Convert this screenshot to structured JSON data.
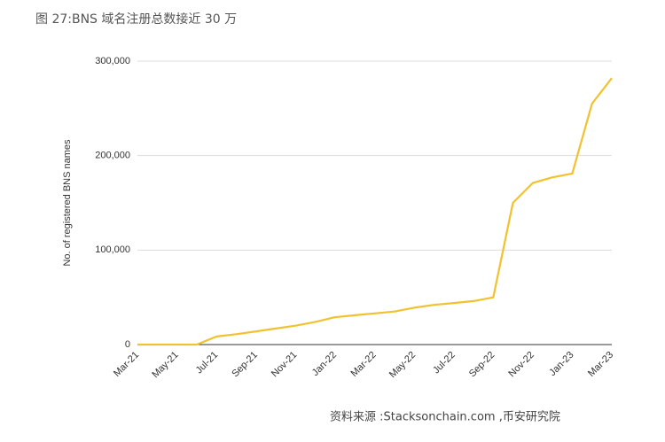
{
  "chart_data": {
    "type": "line",
    "title": "图 27:BNS 域名注册总数接近 30 万",
    "y_label": "No. of registered BNS names",
    "source": "资料来源 :Stacksonchain.com ,币安研究院",
    "categories": [
      "Mar-21",
      null,
      "May-21",
      null,
      "Jul-21",
      null,
      "Sep-21",
      null,
      "Nov-21",
      null,
      "Jan-22",
      null,
      "Mar-22",
      null,
      "May-22",
      null,
      "Jul-22",
      null,
      "Sep-22",
      null,
      "Nov-22",
      null,
      "Jan-23",
      null,
      "Mar-23"
    ],
    "series": [
      {
        "name": "BNS names",
        "color": "#f2c12e",
        "values": [
          0,
          0,
          0,
          0,
          8500,
          11000,
          14000,
          17000,
          20000,
          24000,
          29000,
          31000,
          33000,
          35000,
          39000,
          42000,
          44000,
          46000,
          50000,
          150000,
          171000,
          177000,
          181000,
          255000,
          282000
        ]
      }
    ],
    "ylim": [
      0,
      300000
    ],
    "yticks": [
      {
        "value": 0,
        "label": "0"
      },
      {
        "value": 100000,
        "label": "100,000"
      },
      {
        "value": 200000,
        "label": "200,000"
      },
      {
        "value": 300000,
        "label": "300,000"
      }
    ],
    "grid": true
  }
}
